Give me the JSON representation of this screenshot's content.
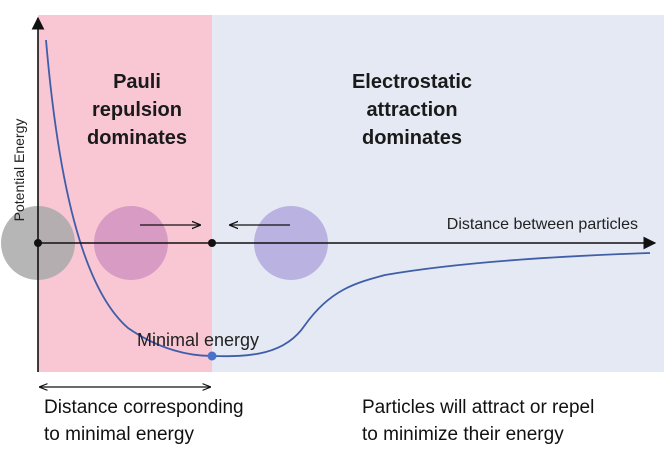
{
  "axes": {
    "y_label": "Potential Energy",
    "x_label": "Distance between particles"
  },
  "regions": {
    "repulsion": {
      "title_lines": [
        "Pauli",
        "repulsion",
        "dominates"
      ],
      "color": "#f9c6d4"
    },
    "attraction": {
      "title_lines": [
        "Electrostatic",
        "attraction",
        "dominates"
      ],
      "color": "#e4e9f4"
    }
  },
  "annotations": {
    "minimum_label": "Minimal energy",
    "distance_note": [
      "Distance corresponding",
      "to minimal energy"
    ],
    "energy_note": [
      "Particles will attract or repel",
      "to minimize their energy"
    ]
  },
  "colors": {
    "curve": "#3f5ea8",
    "axis": "#111111",
    "particle_fixed": "#a9a9a9",
    "particle_left": "#c27fb8",
    "particle_right": "#b3a8dc",
    "minimum_dot": "#4a73c8"
  },
  "icons": {
    "arrow_right": "arrow-right-icon",
    "arrow_left": "arrow-left-icon"
  }
}
